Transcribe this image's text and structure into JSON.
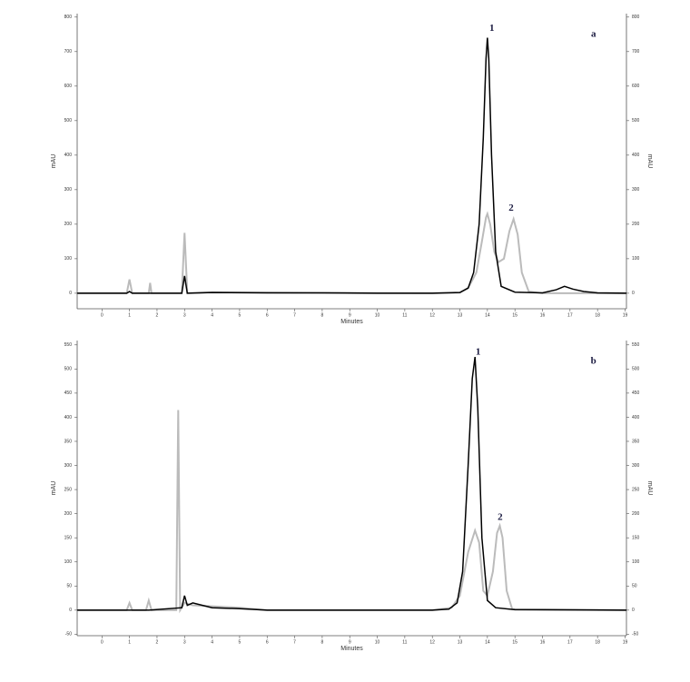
{
  "chart_data": [
    {
      "type": "line",
      "annotations": [
        "1",
        "2",
        "a"
      ],
      "xlabel": "Minutes",
      "ylabel": "mAU",
      "y2label": "mAU",
      "xlim": [
        -0.9,
        19.05
      ],
      "xticks": [
        0,
        1,
        2,
        3,
        4,
        5,
        6,
        7,
        8,
        9,
        10,
        11,
        12,
        13,
        14,
        15,
        16,
        17,
        18,
        19
      ],
      "ylim": [
        -45,
        810
      ],
      "yticks": [
        0,
        100,
        200,
        300,
        400,
        500,
        600,
        700,
        800
      ],
      "series": [
        {
          "color": "#bbbbbb",
          "x": [
            -0.9,
            0,
            0.9,
            1.0,
            1.1,
            1.7,
            1.75,
            1.8,
            2.9,
            3.0,
            3.1,
            4,
            8,
            12,
            13,
            13.3,
            13.6,
            13.8,
            13.95,
            14.0,
            14.1,
            14.25,
            14.4,
            14.6,
            14.8,
            14.95,
            15.1,
            15.25,
            15.5,
            16,
            19.05
          ],
          "values": [
            0,
            0,
            0,
            40,
            0,
            0,
            30,
            0,
            0,
            175,
            0,
            3,
            1,
            0,
            2,
            15,
            60,
            150,
            220,
            230,
            200,
            120,
            90,
            100,
            180,
            215,
            170,
            60,
            5,
            0,
            0
          ]
        },
        {
          "color": "#000000",
          "x": [
            -0.9,
            0,
            0.9,
            1.0,
            1.1,
            2.9,
            3.0,
            3.1,
            4,
            6,
            8,
            10,
            12,
            13,
            13.3,
            13.5,
            13.7,
            13.85,
            13.95,
            14.0,
            14.05,
            14.15,
            14.3,
            14.5,
            15,
            16,
            16.5,
            16.8,
            17.1,
            17.5,
            18,
            19.05
          ],
          "values": [
            0,
            0,
            0,
            5,
            0,
            0,
            50,
            0,
            2,
            1,
            1,
            0,
            0,
            2,
            15,
            60,
            200,
            450,
            680,
            740,
            680,
            400,
            120,
            20,
            3,
            1,
            10,
            20,
            12,
            5,
            1,
            0
          ]
        }
      ]
    },
    {
      "type": "line",
      "annotations": [
        "1",
        "2",
        "b"
      ],
      "xlabel": "Minutes",
      "ylabel": "mAU",
      "y2label": "mAU",
      "xlim": [
        -0.9,
        19.05
      ],
      "xticks": [
        0,
        1,
        2,
        3,
        4,
        5,
        6,
        7,
        8,
        9,
        10,
        11,
        12,
        13,
        14,
        15,
        16,
        17,
        18,
        19
      ],
      "ylim": [
        -53,
        559
      ],
      "yticks": [
        -50,
        0,
        50,
        100,
        150,
        200,
        250,
        300,
        350,
        400,
        450,
        500,
        550
      ],
      "series": [
        {
          "color": "#bbbbbb",
          "x": [
            -0.9,
            0,
            0.9,
            1.0,
            1.1,
            1.6,
            1.7,
            1.8,
            2.7,
            2.77,
            2.84,
            3.0,
            3.3,
            4,
            5,
            6,
            8,
            12,
            12.7,
            13.0,
            13.3,
            13.55,
            13.7,
            13.85,
            14.0,
            14.2,
            14.35,
            14.45,
            14.55,
            14.7,
            14.9,
            19.05
          ],
          "values": [
            0,
            0,
            0,
            15,
            0,
            0,
            20,
            0,
            0,
            415,
            0,
            15,
            10,
            8,
            5,
            0,
            0,
            0,
            5,
            30,
            120,
            165,
            140,
            40,
            30,
            80,
            160,
            175,
            150,
            40,
            2,
            0
          ]
        },
        {
          "color": "#000000",
          "x": [
            -0.9,
            0,
            0.9,
            1.5,
            1.6,
            1.7,
            2.9,
            3.0,
            3.1,
            3.3,
            4,
            5,
            6,
            8,
            11,
            12,
            12.6,
            12.9,
            13.1,
            13.3,
            13.45,
            13.55,
            13.65,
            13.8,
            14.0,
            14.3,
            15,
            19.05
          ],
          "values": [
            0,
            0,
            0,
            0,
            0,
            0,
            5,
            30,
            10,
            15,
            5,
            3,
            0,
            0,
            0,
            0,
            2,
            15,
            80,
            300,
            480,
            525,
            420,
            150,
            20,
            5,
            1,
            0
          ]
        }
      ]
    }
  ]
}
